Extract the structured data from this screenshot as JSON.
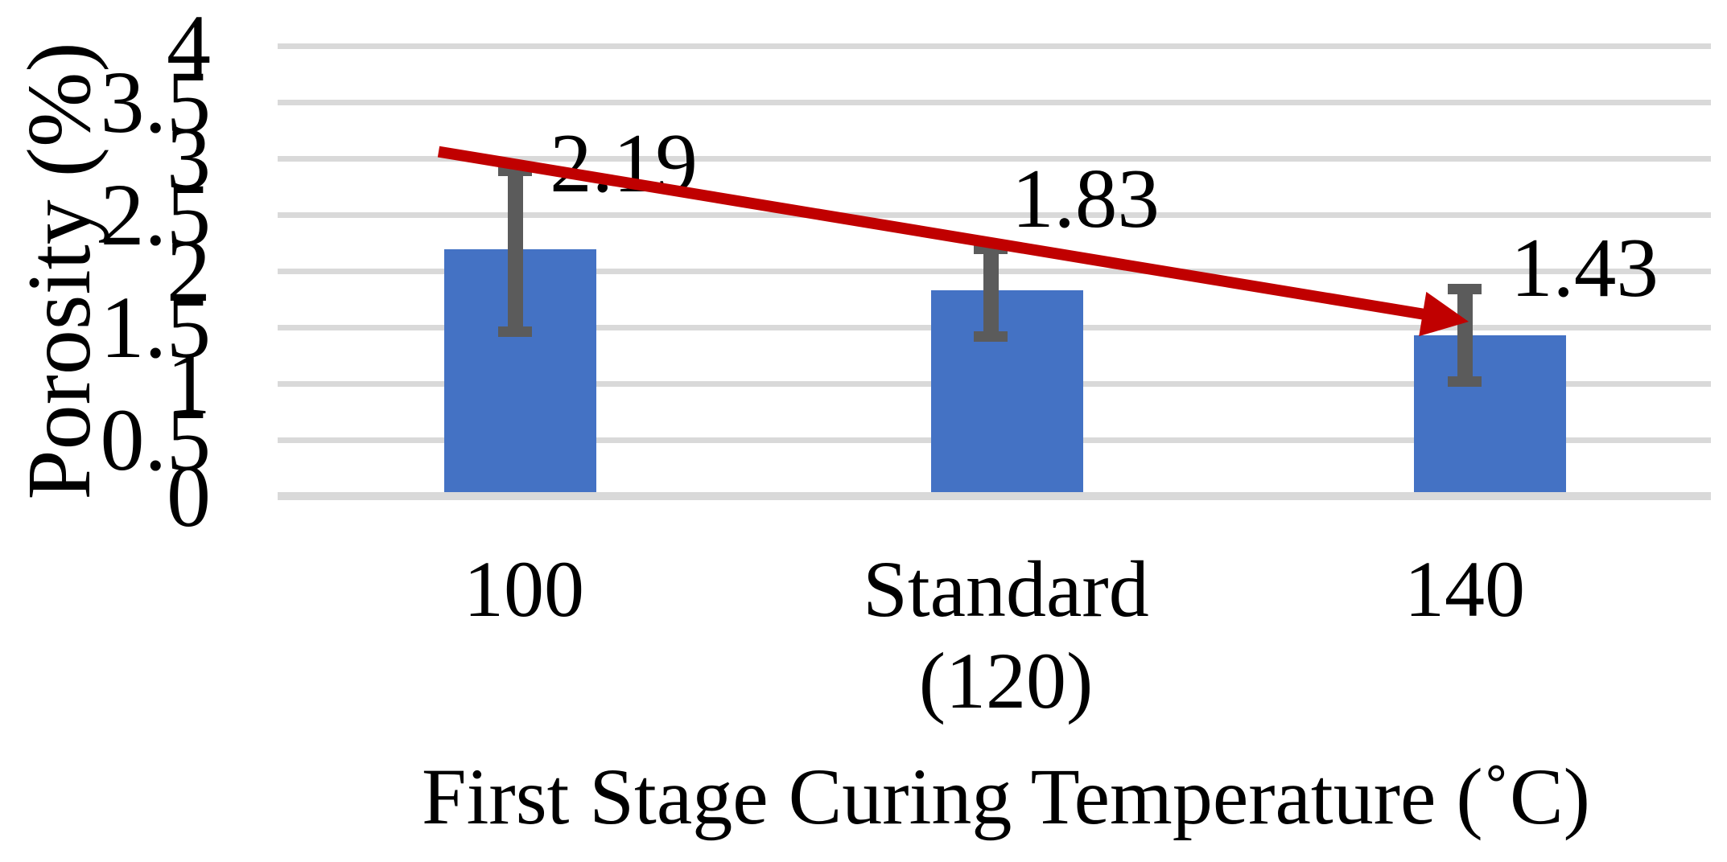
{
  "chart_data": {
    "type": "bar",
    "title": "",
    "ylabel": "Porosity (%)",
    "xlabel": "First Stage Curing Temperature (˚C)",
    "categories": [
      "100",
      "Standard (120)",
      "140"
    ],
    "category_display": [
      [
        "100"
      ],
      [
        "Standard",
        "(120)"
      ],
      [
        "140"
      ]
    ],
    "values": [
      2.19,
      1.83,
      1.43
    ],
    "value_labels": [
      "2.19",
      "1.83",
      "1.43"
    ],
    "error_bars": [
      {
        "upper": 2.89,
        "lower": 1.46
      },
      {
        "upper": 2.2,
        "lower": 1.42
      },
      {
        "upper": 1.84,
        "lower": 1.02
      }
    ],
    "ylim": [
      0,
      4
    ],
    "yticks": [
      4,
      3.5,
      3,
      2.5,
      2,
      1.5,
      1,
      0.5,
      0
    ],
    "ytick_labels": [
      "4",
      "3.5",
      "3",
      "2.5",
      "2",
      "1.5",
      "1",
      "0.5",
      "0"
    ],
    "grid": "horizontal",
    "legend": "none",
    "trend_arrow": {
      "from_value": 3.06,
      "to_value": 1.55,
      "direction": "down-right"
    },
    "colors": {
      "bar": "#4472c4",
      "error_bar": "#5b5b5b",
      "gridline": "#d9d9d9",
      "trend_arrow": "#c00000",
      "text": "#000000",
      "background": "#ffffff"
    }
  }
}
